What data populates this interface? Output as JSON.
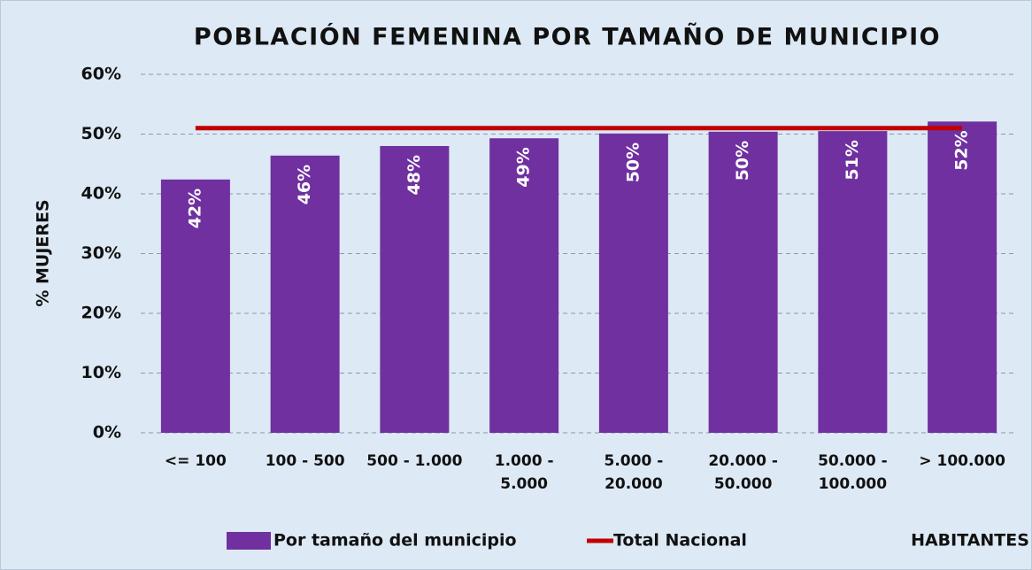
{
  "chart_data": {
    "type": "bar",
    "title": "POBLACIÓN FEMENINA POR TAMAÑO DE MUNICIPIO",
    "y_label": "% MUJERES",
    "x_label": "HABITANTES",
    "categories": [
      "<= 100",
      "100 - 500",
      "500 - 1.000",
      "1.000 - 5.000",
      "5.000 - 20.000",
      "20.000 - 50.000",
      "50.000 - 100.000",
      "> 100.000"
    ],
    "series": [
      {
        "name": "Por tamaño del municipio",
        "type": "bar",
        "color": "#7030a0",
        "values": [
          42.4,
          46.4,
          48.0,
          49.3,
          50.1,
          50.4,
          50.5,
          52.1
        ],
        "value_labels": [
          "42%",
          "46%",
          "48%",
          "49%",
          "50%",
          "50%",
          "51%",
          "52%"
        ]
      },
      {
        "name": "Total Nacional",
        "type": "line",
        "color": "#c00000",
        "values": [
          51.0,
          51.0,
          51.0,
          51.0,
          51.0,
          51.0,
          51.0,
          51.0
        ]
      }
    ],
    "ylim": [
      0,
      60
    ],
    "yticks": [
      {
        "value": 0,
        "label": "0%"
      },
      {
        "value": 10,
        "label": "10%"
      },
      {
        "value": 20,
        "label": "20%"
      },
      {
        "value": 30,
        "label": "30%"
      },
      {
        "value": 40,
        "label": "40%"
      },
      {
        "value": 50,
        "label": "50%"
      },
      {
        "value": 60,
        "label": "60%"
      }
    ],
    "grid": true
  }
}
